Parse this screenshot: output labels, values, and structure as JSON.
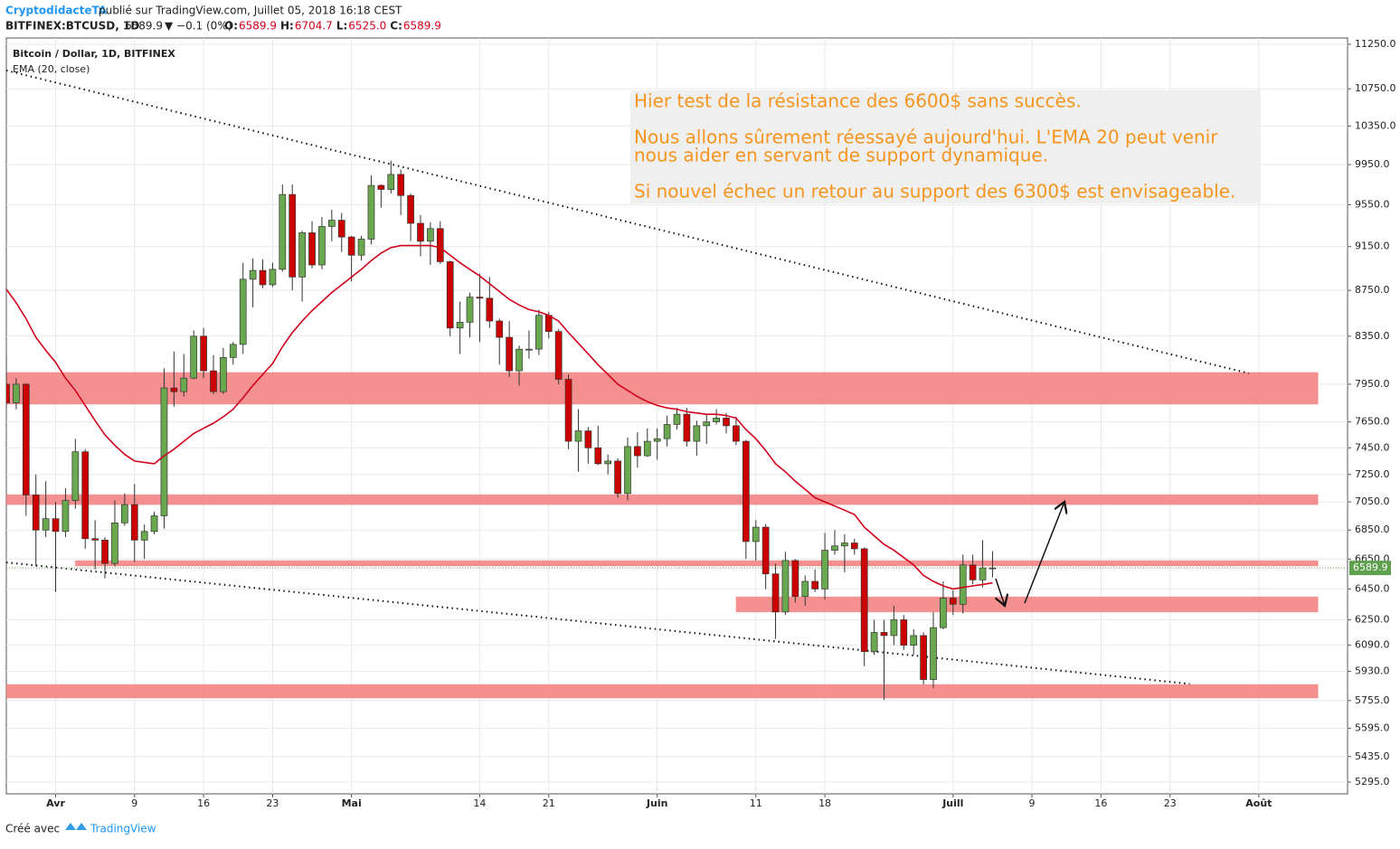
{
  "header": {
    "author": "CryptodidacteTA",
    "published": "publié sur TradingView.com, Juillet 05, 2018 16:18 CEST",
    "symbol": "BITFINEX:BTCUSD, 1D",
    "price": "6589.9",
    "change": "▼ −0.1 (0%)",
    "ohlc": [
      {
        "key": "O:",
        "value": "6589.9"
      },
      {
        "key": "H:",
        "value": "6704.7"
      },
      {
        "key": "L:",
        "value": "6525.0"
      },
      {
        "key": "C:",
        "value": "6589.9"
      }
    ]
  },
  "footer": {
    "made_with": "Créé avec",
    "brand": "TradingView"
  },
  "chart_data": {
    "type": "candlestick",
    "title": "Bitcoin / Dollar, 1D, BITFINEX",
    "log_scale": true,
    "grid": true,
    "up_color": "#6aa84f",
    "down_color": "#cc0000",
    "x": [
      "2018-03-27",
      "2018-03-28",
      "2018-03-29",
      "2018-03-30",
      "2018-03-31",
      "2018-04-01",
      "2018-04-02",
      "2018-04-03",
      "2018-04-04",
      "2018-04-05",
      "2018-04-06",
      "2018-04-07",
      "2018-04-08",
      "2018-04-09",
      "2018-04-10",
      "2018-04-11",
      "2018-04-12",
      "2018-04-13",
      "2018-04-14",
      "2018-04-15",
      "2018-04-16",
      "2018-04-17",
      "2018-04-18",
      "2018-04-19",
      "2018-04-20",
      "2018-04-21",
      "2018-04-22",
      "2018-04-23",
      "2018-04-24",
      "2018-04-25",
      "2018-04-26",
      "2018-04-27",
      "2018-04-28",
      "2018-04-29",
      "2018-04-30",
      "2018-05-01",
      "2018-05-02",
      "2018-05-03",
      "2018-05-04",
      "2018-05-05",
      "2018-05-06",
      "2018-05-07",
      "2018-05-08",
      "2018-05-09",
      "2018-05-10",
      "2018-05-11",
      "2018-05-12",
      "2018-05-13",
      "2018-05-14",
      "2018-05-15",
      "2018-05-16",
      "2018-05-17",
      "2018-05-18",
      "2018-05-19",
      "2018-05-20",
      "2018-05-21",
      "2018-05-22",
      "2018-05-23",
      "2018-05-24",
      "2018-05-25",
      "2018-05-26",
      "2018-05-27",
      "2018-05-28",
      "2018-05-29",
      "2018-05-30",
      "2018-05-31",
      "2018-06-01",
      "2018-06-02",
      "2018-06-03",
      "2018-06-04",
      "2018-06-05",
      "2018-06-06",
      "2018-06-07",
      "2018-06-08",
      "2018-06-09",
      "2018-06-10",
      "2018-06-11",
      "2018-06-12",
      "2018-06-13",
      "2018-06-14",
      "2018-06-15",
      "2018-06-16",
      "2018-06-17",
      "2018-06-18",
      "2018-06-19",
      "2018-06-20",
      "2018-06-21",
      "2018-06-22",
      "2018-06-23",
      "2018-06-24",
      "2018-06-25",
      "2018-06-26",
      "2018-06-27",
      "2018-06-28",
      "2018-06-29",
      "2018-06-30",
      "2018-07-01",
      "2018-07-02",
      "2018-07-03",
      "2018-07-04",
      "2018-07-05"
    ],
    "open": [
      7950,
      7800,
      7950,
      7100,
      6850,
      6930,
      6840,
      7060,
      7420,
      6790,
      6780,
      6620,
      6900,
      7030,
      6780,
      6840,
      6950,
      7920,
      7890,
      8000,
      8350,
      8060,
      7890,
      8170,
      8280,
      8850,
      8930,
      8800,
      8940,
      9650,
      8870,
      9280,
      8980,
      9340,
      9400,
      9240,
      9070,
      9220,
      9740,
      9700,
      9850,
      9640,
      9370,
      9200,
      9320,
      9010,
      8420,
      8470,
      8690,
      8680,
      8480,
      8340,
      8060,
      8240,
      8240,
      8530,
      8390,
      7990,
      7500,
      7580,
      7450,
      7330,
      7350,
      7110,
      7460,
      7390,
      7500,
      7520,
      7630,
      7710,
      7500,
      7620,
      7650,
      7680,
      7620,
      7500,
      6770,
      6870,
      6550,
      6300,
      6640,
      6400,
      6500,
      6450,
      6710,
      6740,
      6760,
      6720,
      6050,
      6170,
      6150,
      6250,
      6090,
      6150,
      5880,
      6200,
      6390,
      6350,
      6610,
      6510,
      6589.9
    ],
    "high": [
      8200,
      8000,
      7960,
      7250,
      7200,
      7050,
      7150,
      7520,
      7440,
      6920,
      6800,
      7060,
      7110,
      7180,
      6890,
      6980,
      8080,
      8220,
      8200,
      8400,
      8420,
      8190,
      8250,
      8300,
      9000,
      9040,
      9030,
      9000,
      9750,
      9750,
      9300,
      9390,
      9430,
      9500,
      9470,
      9250,
      9250,
      9840,
      9750,
      9990,
      9900,
      9660,
      9450,
      9380,
      9390,
      9020,
      8650,
      8730,
      8900,
      8870,
      8500,
      8480,
      8270,
      8400,
      8580,
      8560,
      8410,
      8030,
      7750,
      7610,
      7620,
      7400,
      7370,
      7530,
      7570,
      7600,
      7600,
      7700,
      7760,
      7760,
      7660,
      7710,
      7750,
      7720,
      7690,
      7510,
      6920,
      6890,
      6620,
      6700,
      6650,
      6540,
      6580,
      6830,
      6850,
      6820,
      6790,
      6730,
      6250,
      6250,
      6340,
      6280,
      6190,
      6170,
      6300,
      6500,
      6440,
      6680,
      6680,
      6780,
      6704.7
    ],
    "low": [
      7750,
      7750,
      6950,
      6600,
      6800,
      6430,
      6800,
      7000,
      6720,
      6580,
      6520,
      6600,
      6880,
      6630,
      6650,
      6820,
      6860,
      7770,
      7850,
      7990,
      8000,
      7870,
      7870,
      8110,
      8200,
      8600,
      8770,
      8780,
      8920,
      8750,
      8650,
      8950,
      8940,
      9200,
      9100,
      8830,
      9020,
      9170,
      9520,
      9660,
      9450,
      9200,
      9060,
      8980,
      8990,
      8350,
      8200,
      8340,
      8300,
      8420,
      8110,
      8010,
      7940,
      8160,
      8190,
      8330,
      7950,
      7440,
      7270,
      7330,
      7320,
      7250,
      7080,
      7060,
      7300,
      7380,
      7360,
      7460,
      7590,
      7460,
      7390,
      7480,
      7630,
      7560,
      7470,
      6650,
      6640,
      6450,
      6130,
      6280,
      6360,
      6340,
      6430,
      6380,
      6680,
      6560,
      6680,
      5960,
      6030,
      5760,
      6090,
      6060,
      6030,
      5850,
      5830,
      6190,
      6280,
      6290,
      6480,
      6460,
      6525
    ],
    "close": [
      7800,
      7950,
      7100,
      6850,
      6930,
      6840,
      7060,
      7420,
      6790,
      6780,
      6620,
      6900,
      7030,
      6780,
      6840,
      6950,
      7920,
      7890,
      8000,
      8350,
      8060,
      7890,
      8170,
      8280,
      8850,
      8930,
      8800,
      8940,
      9650,
      8870,
      9280,
      8980,
      9340,
      9400,
      9240,
      9070,
      9220,
      9740,
      9700,
      9850,
      9640,
      9370,
      9200,
      9320,
      9010,
      8420,
      8470,
      8690,
      8680,
      8480,
      8340,
      8060,
      8240,
      8240,
      8530,
      8390,
      7990,
      7500,
      7580,
      7450,
      7330,
      7350,
      7110,
      7460,
      7390,
      7500,
      7520,
      7630,
      7710,
      7500,
      7620,
      7650,
      7680,
      7620,
      7500,
      6770,
      6870,
      6550,
      6300,
      6640,
      6400,
      6500,
      6450,
      6710,
      6740,
      6760,
      6720,
      6050,
      6170,
      6150,
      6250,
      6090,
      6150,
      5880,
      6200,
      6390,
      6350,
      6610,
      6510,
      6590,
      6589.9
    ],
    "overlays": [
      {
        "name": "EMA (20, close)",
        "color": "#d0021b",
        "values": [
          8760,
          8640,
          8500,
          8340,
          8230,
          8130,
          8000,
          7900,
          7780,
          7660,
          7550,
          7470,
          7400,
          7350,
          7340,
          7330,
          7390,
          7440,
          7500,
          7560,
          7600,
          7640,
          7690,
          7750,
          7840,
          7940,
          8030,
          8120,
          8260,
          8380,
          8480,
          8570,
          8650,
          8730,
          8800,
          8870,
          8940,
          9020,
          9090,
          9140,
          9160,
          9160,
          9160,
          9160,
          9140,
          9070,
          9000,
          8940,
          8880,
          8810,
          8740,
          8670,
          8620,
          8580,
          8560,
          8530,
          8480,
          8380,
          8290,
          8200,
          8110,
          8030,
          7950,
          7900,
          7850,
          7810,
          7780,
          7760,
          7750,
          7730,
          7720,
          7710,
          7710,
          7700,
          7680,
          7590,
          7520,
          7430,
          7330,
          7270,
          7200,
          7140,
          7080,
          7050,
          7020,
          6990,
          6960,
          6870,
          6810,
          6750,
          6710,
          6660,
          6610,
          6540,
          6500,
          6470,
          6450,
          6460,
          6470,
          6480,
          6490
        ]
      }
    ],
    "zones": [
      {
        "from": 7790,
        "to": 8046,
        "x": [
          "2018-03-27",
          "2018-08-07"
        ],
        "color": "#f27c7c"
      },
      {
        "from": 7030,
        "to": 7102,
        "x": [
          "2018-03-27",
          "2018-08-07"
        ],
        "color": "#f27c7c"
      },
      {
        "from": 6603,
        "to": 6639,
        "x": [
          "2018-04-03",
          "2018-08-07"
        ],
        "color": "#f27c7c"
      },
      {
        "from": 6300,
        "to": 6398,
        "x": [
          "2018-06-09",
          "2018-08-07"
        ],
        "color": "#f27c7c"
      },
      {
        "from": 5770,
        "to": 5850,
        "x": [
          "2018-03-27",
          "2018-08-07"
        ],
        "color": "#f27c7c"
      }
    ],
    "trendlines": [
      {
        "x": [
          "2018-03-27",
          "2018-07-31"
        ],
        "y": [
          10953,
          8039
        ]
      },
      {
        "x": [
          "2018-03-27",
          "2018-07-25"
        ],
        "y": [
          6627,
          5854
        ]
      }
    ],
    "annotation": {
      "color": "#f5951f",
      "lines": [
        "Hier test de la résistance des 6600$ sans succès.",
        "Nous allons sûrement réessayé aujourd'hui. L'EMA 20 peut venir",
        "nous aider en servant de support dynamique.",
        "Si nouvel échec un retour au support des 6300$ est envisageable."
      ]
    },
    "last_price": 6589.9,
    "last_price_color": "#5fa04e",
    "xlim": [
      "2018-03-27",
      "2018-08-10"
    ],
    "xticks": [
      {
        "value": "2018-04-01",
        "label": "Avr"
      },
      {
        "value": "2018-04-09",
        "label": "9"
      },
      {
        "value": "2018-04-16",
        "label": "16"
      },
      {
        "value": "2018-04-23",
        "label": "23"
      },
      {
        "value": "2018-05-01",
        "label": "Mai"
      },
      {
        "value": "2018-05-14",
        "label": "14"
      },
      {
        "value": "2018-05-21",
        "label": "21"
      },
      {
        "value": "2018-06-01",
        "label": "Juin"
      },
      {
        "value": "2018-06-11",
        "label": "11"
      },
      {
        "value": "2018-06-18",
        "label": "18"
      },
      {
        "value": "2018-07-01",
        "label": "Juill"
      },
      {
        "value": "2018-07-09",
        "label": "9"
      },
      {
        "value": "2018-07-16",
        "label": "16"
      },
      {
        "value": "2018-07-23",
        "label": "23"
      },
      {
        "value": "2018-08-01",
        "label": "Août"
      }
    ],
    "ylim": [
      5232,
      11323
    ],
    "yticks": [
      {
        "value": 5295,
        "label": "5295.0"
      },
      {
        "value": 5435,
        "label": "5435.0"
      },
      {
        "value": 5595,
        "label": "5595.0"
      },
      {
        "value": 5755,
        "label": "5755.0"
      },
      {
        "value": 5930,
        "label": "5930.0"
      },
      {
        "value": 6090,
        "label": "6090.0"
      },
      {
        "value": 6250,
        "label": "6250.0"
      },
      {
        "value": 6450,
        "label": "6450.0"
      },
      {
        "value": 6650,
        "label": "6650.0"
      },
      {
        "value": 6850,
        "label": "6850.0"
      },
      {
        "value": 7050,
        "label": "7050.0"
      },
      {
        "value": 7250,
        "label": "7250.0"
      },
      {
        "value": 7450,
        "label": "7450.0"
      },
      {
        "value": 7650,
        "label": "7650.0"
      },
      {
        "value": 7950,
        "label": "7950.0"
      },
      {
        "value": 8350,
        "label": "8350.0"
      },
      {
        "value": 8750,
        "label": "8750.0"
      },
      {
        "value": 9150,
        "label": "9150.0"
      },
      {
        "value": 9550,
        "label": "9550.0"
      },
      {
        "value": 9950,
        "label": "9950.0"
      },
      {
        "value": 10350,
        "label": "10350.0"
      },
      {
        "value": 10750,
        "label": "10750.0"
      },
      {
        "value": 11250,
        "label": "11250.0"
      }
    ]
  }
}
